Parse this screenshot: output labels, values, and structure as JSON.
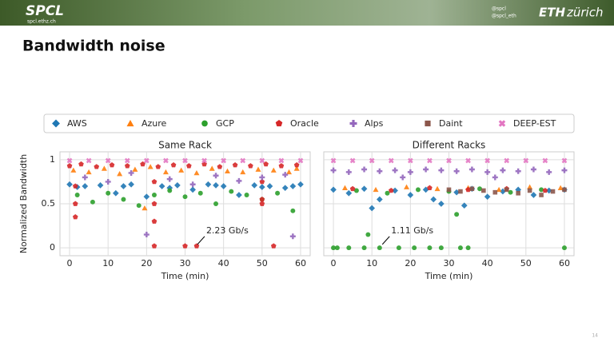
{
  "header": {
    "logo": "SPCL",
    "logo_sub": "spcl.ethz.ch",
    "twitter1": "@spcl",
    "twitter2": "@spcl_eth",
    "eth": "ETH",
    "eth2": "zürich"
  },
  "slide": {
    "title": "Bandwidth noise",
    "page": "14"
  },
  "chart_data": [
    {
      "type": "scatter",
      "title": "Same Rack",
      "xlabel": "Time (min)",
      "ylabel": "Normalized Bandwidth",
      "xlim": [
        -2.5,
        62.5
      ],
      "ylim": [
        -0.09,
        1.09
      ],
      "xticks": [
        0,
        10,
        20,
        30,
        40,
        50,
        60
      ],
      "yticks": [
        0.0,
        0.5,
        1.0
      ],
      "grid": true,
      "annotation": {
        "text": "2.23 Gb/s",
        "x": 33,
        "y": 0.02
      },
      "series": [
        {
          "name": "AWS",
          "color": "#1f77b4",
          "marker": "D",
          "x": [
            0,
            4,
            8,
            12,
            16,
            20,
            24,
            28,
            32,
            36,
            40,
            44,
            48,
            52,
            56,
            60,
            2,
            14,
            26,
            38,
            50,
            58
          ],
          "values": [
            0.72,
            0.7,
            0.71,
            0.62,
            0.72,
            0.58,
            0.7,
            0.71,
            0.66,
            0.72,
            0.7,
            0.6,
            0.71,
            0.7,
            0.68,
            0.72,
            0.69,
            0.7,
            0.68,
            0.71,
            0.69,
            0.7
          ]
        },
        {
          "name": "Azure",
          "color": "#ff7f0e",
          "marker": "^",
          "x": [
            1,
            5,
            9,
            13,
            17,
            21,
            25,
            29,
            33,
            37,
            41,
            45,
            49,
            53,
            57,
            59,
            19.5
          ],
          "values": [
            0.88,
            0.86,
            0.9,
            0.84,
            0.89,
            0.92,
            0.86,
            0.88,
            0.85,
            0.9,
            0.87,
            0.86,
            0.89,
            0.88,
            0.86,
            0.9,
            0.45
          ]
        },
        {
          "name": "GCP",
          "color": "#2ca02c",
          "marker": "o",
          "x": [
            2,
            6,
            10,
            14,
            18,
            22,
            26,
            30,
            34,
            38,
            42,
            46,
            50,
            54,
            58
          ],
          "values": [
            0.6,
            0.52,
            0.62,
            0.55,
            0.48,
            0.6,
            0.65,
            0.58,
            0.62,
            0.5,
            0.64,
            0.6,
            0.55,
            0.62,
            0.42
          ]
        },
        {
          "name": "Oracle",
          "color": "#d62728",
          "marker": "p",
          "x": [
            0,
            3,
            7,
            11,
            15,
            19,
            23,
            27,
            31,
            35,
            39,
            43,
            47,
            51,
            55,
            59,
            1.5,
            1.5,
            1.5,
            22,
            22,
            22,
            22,
            30,
            33,
            50,
            50,
            50,
            53
          ],
          "values": [
            0.93,
            0.95,
            0.92,
            0.94,
            0.93,
            0.95,
            0.92,
            0.94,
            0.93,
            0.95,
            0.92,
            0.94,
            0.93,
            0.95,
            0.93,
            0.94,
            0.7,
            0.5,
            0.35,
            0.75,
            0.5,
            0.3,
            0.02,
            0.02,
            0.02,
            0.75,
            0.55,
            0.5,
            0.02
          ]
        },
        {
          "name": "Alps",
          "color": "#9467bd",
          "marker": "P",
          "x": [
            4,
            10,
            16,
            20,
            26,
            32,
            38,
            44,
            50,
            56,
            58
          ],
          "values": [
            0.8,
            0.75,
            0.85,
            0.15,
            0.78,
            0.72,
            0.82,
            0.76,
            0.8,
            0.83,
            0.13
          ]
        },
        {
          "name": "Daint",
          "color": "#8c564b",
          "marker": "s",
          "x": [],
          "values": []
        },
        {
          "name": "DEEP-EST",
          "color": "#e377c2",
          "marker": "X",
          "x": [
            0,
            5,
            10,
            15,
            20,
            25,
            30,
            35,
            40,
            45,
            50,
            55,
            60
          ],
          "values": [
            0.99,
            0.99,
            0.99,
            0.99,
            0.99,
            0.99,
            0.99,
            0.99,
            0.99,
            0.99,
            0.99,
            0.99,
            0.99
          ]
        }
      ]
    },
    {
      "type": "scatter",
      "title": "Different Racks",
      "xlabel": "Time (min)",
      "xlim": [
        -2.5,
        62.5
      ],
      "xticks": [
        0,
        10,
        20,
        30,
        40,
        50,
        60
      ],
      "annotation": {
        "text": "1.11 Gb/s",
        "x": 12.5,
        "y": 0.02
      },
      "series": [
        {
          "x": [
            0,
            4,
            8,
            12,
            16,
            20,
            24,
            28,
            32,
            36,
            40,
            44,
            48,
            52,
            56,
            60,
            10,
            26,
            34
          ],
          "values": [
            0.66,
            0.62,
            0.67,
            0.55,
            0.65,
            0.6,
            0.66,
            0.5,
            0.63,
            0.67,
            0.58,
            0.64,
            0.66,
            0.6,
            0.65,
            0.66,
            0.45,
            0.55,
            0.48
          ]
        },
        {
          "x": [
            3,
            11,
            19,
            27,
            35,
            43,
            51,
            59
          ],
          "values": [
            0.68,
            0.66,
            0.69,
            0.67,
            0.68,
            0.66,
            0.69,
            0.68
          ]
        },
        {
          "x": [
            0,
            1,
            4,
            8,
            9,
            12,
            17,
            21,
            25,
            28,
            33,
            35,
            60,
            6,
            14,
            22,
            30,
            38,
            46,
            54,
            32
          ],
          "values": [
            0.0,
            0.0,
            0.0,
            0.0,
            0.15,
            0.0,
            0.0,
            0.0,
            0.0,
            0.0,
            0.0,
            0.0,
            0.0,
            0.65,
            0.62,
            0.66,
            0.64,
            0.67,
            0.63,
            0.66,
            0.38
          ]
        },
        {
          "x": [
            5,
            15,
            25,
            35,
            45,
            55
          ],
          "values": [
            0.67,
            0.65,
            0.68,
            0.66,
            0.67,
            0.65
          ]
        },
        {
          "x": [
            0,
            4,
            8,
            12,
            16,
            20,
            24,
            28,
            32,
            36,
            40,
            44,
            48,
            52,
            56,
            60,
            18,
            42
          ],
          "values": [
            0.88,
            0.86,
            0.89,
            0.87,
            0.88,
            0.86,
            0.89,
            0.88,
            0.87,
            0.89,
            0.86,
            0.88,
            0.87,
            0.89,
            0.86,
            0.88,
            0.8,
            0.8
          ]
        },
        {
          "x": [
            30,
            33,
            36,
            39,
            42,
            45,
            48,
            51,
            54,
            57,
            60
          ],
          "values": [
            0.66,
            0.64,
            0.67,
            0.65,
            0.63,
            0.66,
            0.62,
            0.65,
            0.6,
            0.64,
            0.66
          ]
        },
        {
          "x": [
            0,
            5,
            10,
            15,
            20,
            25,
            30,
            35,
            40,
            45,
            50,
            55,
            60
          ],
          "values": [
            0.99,
            0.99,
            0.99,
            0.99,
            0.99,
            0.99,
            0.99,
            0.99,
            0.99,
            0.99,
            0.99,
            0.99,
            0.99
          ]
        }
      ]
    }
  ]
}
